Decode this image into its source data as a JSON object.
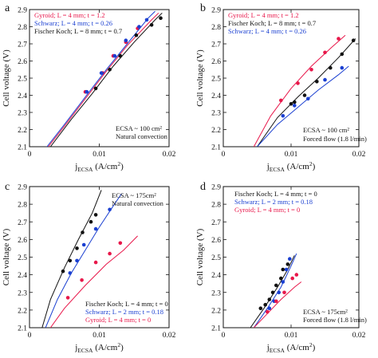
{
  "figure": {
    "ylabel": "Cell voltage (V)",
    "xlabel_main": "j",
    "xlabel_sub": "ECSA",
    "xlabel_unit_before": " (A/cm",
    "xlabel_unit_sup": "2",
    "xlabel_unit_after": ")"
  },
  "chart_data": [
    {
      "panel": "a",
      "type": "scatter",
      "xlim": [
        0,
        0.02
      ],
      "ylim": [
        2.1,
        2.9
      ],
      "xticks": [
        "0",
        "0.01",
        "0.02"
      ],
      "yticks": [
        "2.1",
        "2.2",
        "2.3",
        "2.4",
        "2.5",
        "2.6",
        "2.7",
        "2.8",
        "2.9"
      ],
      "legend_position": "top-left",
      "annotation": [
        "ECSA ~ 100 cm²",
        "Natural convection"
      ],
      "annotation_position": "bottom-right",
      "series": [
        {
          "name": "Gyroid; L = 4 mm; t = 1.2",
          "color": "#e8174a",
          "points": [
            [
              0.008,
              2.42
            ],
            [
              0.0105,
              2.53
            ],
            [
              0.012,
              2.63
            ],
            [
              0.0138,
              2.71
            ],
            [
              0.0155,
              2.79
            ]
          ],
          "fit": [
            [
              0.0027,
              2.1
            ],
            [
              0.005,
              2.22
            ],
            [
              0.008,
              2.38
            ],
            [
              0.011,
              2.54
            ],
            [
              0.014,
              2.69
            ],
            [
              0.0175,
              2.84
            ],
            [
              0.0185,
              2.88
            ]
          ]
        },
        {
          "name": "Schwarz; L = 4 mm; t = 0.26",
          "color": "#1a3fd1",
          "points": [
            [
              0.0082,
              2.42
            ],
            [
              0.0103,
              2.53
            ],
            [
              0.0122,
              2.63
            ],
            [
              0.0138,
              2.72
            ],
            [
              0.0157,
              2.8
            ],
            [
              0.0168,
              2.84
            ]
          ],
          "fit": [
            [
              0.0025,
              2.1
            ],
            [
              0.005,
              2.23
            ],
            [
              0.008,
              2.39
            ],
            [
              0.011,
              2.55
            ],
            [
              0.014,
              2.7
            ],
            [
              0.017,
              2.85
            ],
            [
              0.018,
              2.89
            ]
          ]
        },
        {
          "name": "Fischer Koch; L = 8 mm; t = 0.7",
          "color": "#111111",
          "points": [
            [
              0.0095,
              2.44
            ],
            [
              0.0115,
              2.55
            ],
            [
              0.013,
              2.63
            ],
            [
              0.0153,
              2.75
            ],
            [
              0.0175,
              2.81
            ],
            [
              0.0188,
              2.85
            ]
          ],
          "fit": [
            [
              0.003,
              2.1
            ],
            [
              0.006,
              2.26
            ],
            [
              0.009,
              2.41
            ],
            [
              0.012,
              2.57
            ],
            [
              0.015,
              2.71
            ],
            [
              0.018,
              2.84
            ],
            [
              0.019,
              2.88
            ]
          ]
        }
      ]
    },
    {
      "panel": "b",
      "type": "scatter",
      "xlim": [
        0,
        0.02
      ],
      "ylim": [
        2.1,
        2.9
      ],
      "xticks": [
        "0",
        "0.01",
        "0.02"
      ],
      "yticks": [
        "2.1",
        "2.2",
        "2.3",
        "2.4",
        "2.5",
        "2.6",
        "2.7",
        "2.8",
        "2.9"
      ],
      "legend_position": "top-left",
      "annotation": [
        "ECSA ~ 100 cm²",
        "Forced flow (1.8 l/min)"
      ],
      "annotation_position": "bottom-right",
      "series": [
        {
          "name": "Gyroid; L = 4 mm; t = 1.2",
          "color": "#e8174a",
          "points": [
            [
              0.0085,
              2.37
            ],
            [
              0.011,
              2.47
            ],
            [
              0.013,
              2.55
            ],
            [
              0.015,
              2.65
            ],
            [
              0.017,
              2.73
            ]
          ],
          "fit": [
            [
              0.0045,
              2.1
            ],
            [
              0.007,
              2.28
            ],
            [
              0.01,
              2.44
            ],
            [
              0.013,
              2.57
            ],
            [
              0.016,
              2.68
            ],
            [
              0.018,
              2.75
            ]
          ]
        },
        {
          "name": "Fischer Koch; L = 8 mm; t = 0.7",
          "color": "#111111",
          "points": [
            [
              0.01,
              2.35
            ],
            [
              0.0105,
              2.36
            ],
            [
              0.012,
              2.4
            ],
            [
              0.0138,
              2.48
            ],
            [
              0.0158,
              2.56
            ],
            [
              0.0175,
              2.64
            ],
            [
              0.0192,
              2.72
            ]
          ],
          "fit": [
            [
              0.005,
              2.1
            ],
            [
              0.008,
              2.27
            ],
            [
              0.011,
              2.39
            ],
            [
              0.014,
              2.5
            ],
            [
              0.017,
              2.62
            ],
            [
              0.0195,
              2.73
            ]
          ]
        },
        {
          "name": "Schwarz; L = 4 mm; t = 0.26",
          "color": "#1a3fd1",
          "points": [
            [
              0.0088,
              2.28
            ],
            [
              0.0105,
              2.34
            ],
            [
              0.0125,
              2.38
            ],
            [
              0.015,
              2.49
            ],
            [
              0.0175,
              2.56
            ]
          ],
          "fit": [
            [
              0.005,
              2.1
            ],
            [
              0.008,
              2.23
            ],
            [
              0.011,
              2.33
            ],
            [
              0.014,
              2.43
            ],
            [
              0.017,
              2.52
            ],
            [
              0.0185,
              2.57
            ]
          ]
        }
      ]
    },
    {
      "panel": "c",
      "type": "scatter",
      "xlim": [
        0,
        0.02
      ],
      "ylim": [
        2.1,
        2.9
      ],
      "xticks": [
        "0",
        "0.01",
        "0.02"
      ],
      "yticks": [
        "2.1",
        "2.2",
        "2.3",
        "2.4",
        "2.5",
        "2.6",
        "2.7",
        "2.8",
        "2.9"
      ],
      "legend_position": "bottom-right",
      "annotation": [
        "ECSA ~ 175cm²",
        "Natural convection"
      ],
      "annotation_position": "top-right",
      "series": [
        {
          "name": "Fischer Koch; L = 4 mm; t = 0",
          "color": "#111111",
          "points": [
            [
              0.0048,
              2.42
            ],
            [
              0.0058,
              2.48
            ],
            [
              0.0068,
              2.55
            ],
            [
              0.0076,
              2.64
            ],
            [
              0.0088,
              2.7
            ],
            [
              0.0095,
              2.74
            ]
          ],
          "fit": [
            [
              0.0018,
              2.1
            ],
            [
              0.003,
              2.26
            ],
            [
              0.005,
              2.44
            ],
            [
              0.007,
              2.6
            ],
            [
              0.009,
              2.75
            ],
            [
              0.0103,
              2.88
            ]
          ]
        },
        {
          "name": "Schwarz; L = 2 mm; t = 0.18",
          "color": "#1a3fd1",
          "points": [
            [
              0.0058,
              2.41
            ],
            [
              0.0068,
              2.48
            ],
            [
              0.0078,
              2.57
            ],
            [
              0.0095,
              2.66
            ],
            [
              0.0115,
              2.77
            ]
          ],
          "fit": [
            [
              0.0023,
              2.1
            ],
            [
              0.004,
              2.26
            ],
            [
              0.006,
              2.41
            ],
            [
              0.008,
              2.54
            ],
            [
              0.01,
              2.67
            ],
            [
              0.012,
              2.79
            ],
            [
              0.0132,
              2.86
            ]
          ]
        },
        {
          "name": "Gyroid; L = 4 mm; t = 0",
          "color": "#e8174a",
          "points": [
            [
              0.0055,
              2.27
            ],
            [
              0.0075,
              2.37
            ],
            [
              0.0095,
              2.47
            ],
            [
              0.0115,
              2.52
            ],
            [
              0.013,
              2.58
            ]
          ],
          "fit": [
            [
              0.003,
              2.1
            ],
            [
              0.005,
              2.21
            ],
            [
              0.008,
              2.34
            ],
            [
              0.011,
              2.46
            ],
            [
              0.0135,
              2.54
            ],
            [
              0.0155,
              2.62
            ]
          ]
        }
      ]
    },
    {
      "panel": "d",
      "type": "scatter",
      "xlim": [
        0,
        0.02
      ],
      "ylim": [
        2.1,
        2.9
      ],
      "xticks": [
        "0",
        "0.01",
        "0.02"
      ],
      "yticks": [
        "2.1",
        "2.2",
        "2.3",
        "2.4",
        "2.5",
        "2.6",
        "2.7",
        "2.8",
        "2.9"
      ],
      "legend_position": "top-left",
      "annotation": [
        "ECSA ~ 175cm²",
        "Forced flow (1.8 l/min)"
      ],
      "annotation_position": "bottom-right",
      "series": [
        {
          "name": "Fischer Koch; L = 4 mm; t = 0",
          "color": "#111111",
          "points": [
            [
              0.0055,
              2.21
            ],
            [
              0.0062,
              2.23
            ],
            [
              0.0068,
              2.26
            ],
            [
              0.0073,
              2.3
            ],
            [
              0.0078,
              2.34
            ],
            [
              0.0085,
              2.38
            ],
            [
              0.0088,
              2.43
            ],
            [
              0.0095,
              2.46
            ]
          ],
          "fit": [
            [
              0.004,
              2.1
            ],
            [
              0.006,
              2.21
            ],
            [
              0.008,
              2.33
            ],
            [
              0.0095,
              2.43
            ],
            [
              0.0105,
              2.51
            ]
          ]
        },
        {
          "name": "Schwarz; L = 2 mm; t = 0.18",
          "color": "#1a3fd1",
          "points": [
            [
              0.0068,
              2.21
            ],
            [
              0.0075,
              2.25
            ],
            [
              0.0082,
              2.3
            ],
            [
              0.0088,
              2.36
            ],
            [
              0.0093,
              2.43
            ],
            [
              0.0098,
              2.49
            ]
          ],
          "fit": [
            [
              0.0045,
              2.1
            ],
            [
              0.0065,
              2.21
            ],
            [
              0.0085,
              2.33
            ],
            [
              0.01,
              2.45
            ],
            [
              0.0108,
              2.52
            ]
          ]
        },
        {
          "name": "Gyroid; L = 4 mm; t = 0",
          "color": "#e8174a",
          "points": [
            [
              0.0065,
              2.19
            ],
            [
              0.0078,
              2.25
            ],
            [
              0.009,
              2.3
            ],
            [
              0.0102,
              2.38
            ],
            [
              0.0108,
              2.4
            ]
          ],
          "fit": [
            [
              0.0045,
              2.1
            ],
            [
              0.0065,
              2.18
            ],
            [
              0.0085,
              2.26
            ],
            [
              0.0105,
              2.33
            ],
            [
              0.0115,
              2.36
            ]
          ]
        }
      ]
    }
  ]
}
